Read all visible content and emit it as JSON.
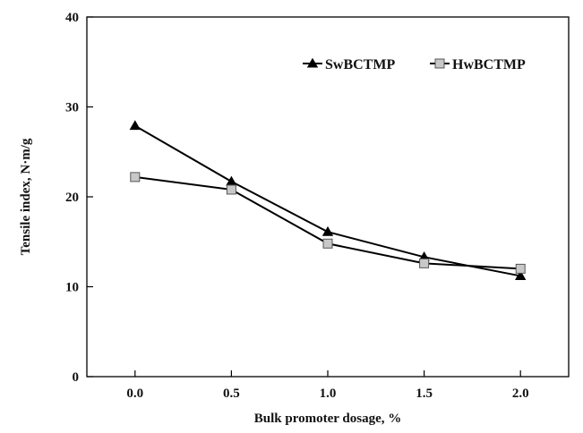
{
  "chart_data": {
    "type": "line",
    "title": "",
    "xlabel": "Bulk promoter dosage, %",
    "ylabel": "Tensile index, N·m/g",
    "x": [
      0.0,
      0.5,
      1.0,
      1.5,
      2.0
    ],
    "x_tick_labels": [
      "0.0",
      "0.5",
      "1.0",
      "1.5",
      "2.0"
    ],
    "xlim": [
      -0.25,
      2.25
    ],
    "ylim": [
      0,
      40
    ],
    "y_ticks": [
      0,
      10,
      20,
      30,
      40
    ],
    "y_tick_labels": [
      "0",
      "10",
      "20",
      "30",
      "40"
    ],
    "grid": false,
    "legend_position": "top-right",
    "series": [
      {
        "name": "SwBCTMP",
        "marker": "triangle-filled",
        "color": "#000000",
        "values": [
          27.9,
          21.7,
          16.1,
          13.3,
          11.2
        ]
      },
      {
        "name": "HwBCTMP",
        "marker": "square-open",
        "color": "#000000",
        "marker_fill": "#c8c8c8",
        "values": [
          22.2,
          20.8,
          14.8,
          12.6,
          12.0
        ]
      }
    ]
  }
}
